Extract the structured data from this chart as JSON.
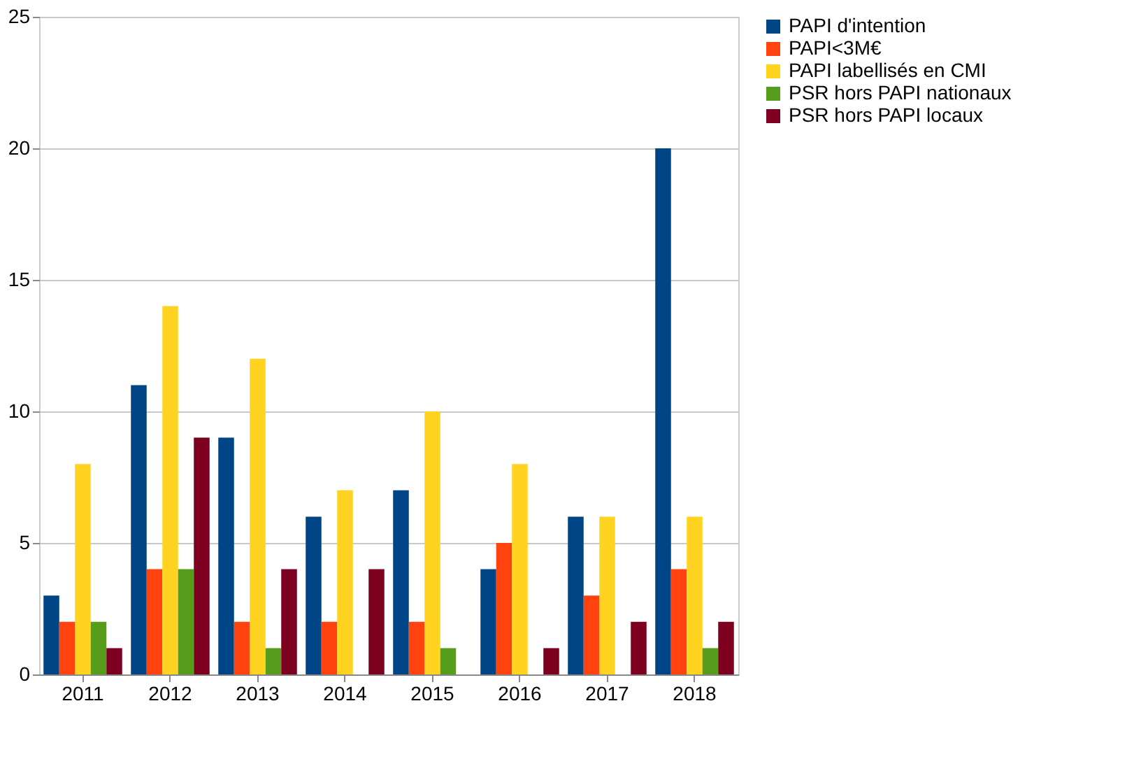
{
  "chart_data": {
    "type": "bar",
    "categories": [
      "2011",
      "2012",
      "2013",
      "2014",
      "2015",
      "2016",
      "2017",
      "2018"
    ],
    "series": [
      {
        "name": "PAPI d'intention",
        "color": "#004586",
        "values": [
          3,
          11,
          9,
          6,
          7,
          4,
          6,
          20
        ]
      },
      {
        "name": "PAPI<3M€",
        "color": "#ff420e",
        "values": [
          2,
          4,
          2,
          2,
          2,
          5,
          3,
          4
        ]
      },
      {
        "name": "PAPI labellisés en CMI",
        "color": "#ffd320",
        "values": [
          8,
          14,
          12,
          7,
          10,
          8,
          6,
          6
        ]
      },
      {
        "name": "PSR hors PAPI nationaux",
        "color": "#579d1c",
        "values": [
          2,
          4,
          1,
          0,
          1,
          0,
          0,
          1
        ]
      },
      {
        "name": "PSR hors PAPI locaux",
        "color": "#7e0021",
        "values": [
          1,
          9,
          4,
          4,
          0,
          1,
          2,
          2
        ]
      }
    ],
    "ylim": [
      0,
      25
    ],
    "yticks": [
      0,
      5,
      10,
      15,
      20,
      25
    ],
    "grid": "y",
    "legend": "right"
  }
}
